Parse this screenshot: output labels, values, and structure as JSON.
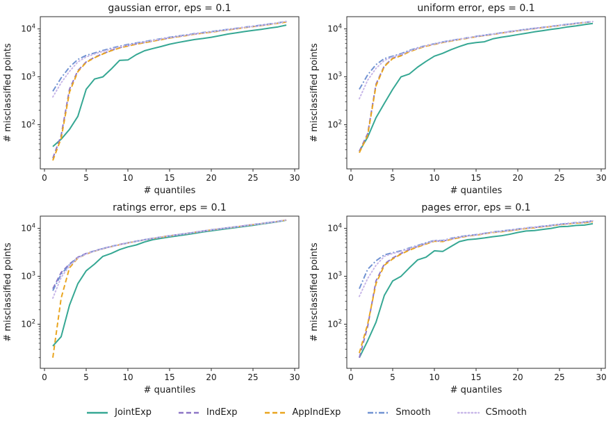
{
  "chart_data": {
    "type": "line",
    "layout": "2x2-grid",
    "x_label": "# quantiles",
    "y_label": "# misclassified points",
    "y_scale": "log",
    "x_ticks": [
      0,
      5,
      10,
      15,
      20,
      25,
      30
    ],
    "y_ticks": [
      100,
      1000,
      10000
    ],
    "x_lim": [
      -0.5,
      30.5
    ],
    "y_lim": [
      12,
      18000
    ],
    "legend_position": "bottom",
    "series_styles": [
      {
        "name": "JointExp",
        "color": "#35a793",
        "dash": "solid"
      },
      {
        "name": "IndExp",
        "color": "#8d75c6",
        "dash": "dashed"
      },
      {
        "name": "AppIndExp",
        "color": "#e9a51f",
        "dash": "dashed"
      },
      {
        "name": "Smooth",
        "color": "#7092d2",
        "dash": "dashdot"
      },
      {
        "name": "CSmooth",
        "color": "#c7b6e8",
        "dash": "dotted"
      }
    ],
    "x_values": [
      1,
      2,
      3,
      4,
      5,
      6,
      7,
      8,
      9,
      10,
      11,
      12,
      13,
      14,
      15,
      16,
      17,
      18,
      19,
      20,
      21,
      22,
      23,
      24,
      25,
      26,
      27,
      28,
      29
    ],
    "charts": [
      {
        "title": "gaussian error, eps = 0.1",
        "series": [
          {
            "name": "JointExp",
            "values": [
              35,
              50,
              80,
              150,
              550,
              900,
              1000,
              1450,
              2200,
              2250,
              2900,
              3500,
              3900,
              4300,
              4800,
              5200,
              5600,
              6000,
              6300,
              6700,
              7200,
              7800,
              8300,
              8800,
              9300,
              9800,
              10400,
              11000,
              12000
            ]
          },
          {
            "name": "IndExp",
            "values": [
              20,
              60,
              550,
              1350,
              2050,
              2550,
              3050,
              3550,
              4050,
              4450,
              4850,
              5200,
              5600,
              6000,
              6500,
              6900,
              7300,
              7800,
              8200,
              8600,
              9100,
              9600,
              10100,
              10700,
              11200,
              11800,
              12500,
              13200,
              14000
            ]
          },
          {
            "name": "AppIndExp",
            "values": [
              18,
              52,
              480,
              1280,
              2000,
              2500,
              3000,
              3500,
              4000,
              4400,
              4800,
              5150,
              5550,
              5950,
              6450,
              6850,
              7250,
              7750,
              8150,
              8550,
              9050,
              9550,
              10050,
              10650,
              11150,
              11750,
              12400,
              13100,
              13900
            ]
          },
          {
            "name": "Smooth",
            "values": [
              500,
              950,
              1600,
              2300,
              2800,
              3150,
              3550,
              3950,
              4350,
              4750,
              5100,
              5450,
              5850,
              6250,
              6700,
              7100,
              7500,
              8000,
              8400,
              8800,
              9300,
              9800,
              10300,
              10900,
              11400,
              12000,
              12700,
              13400,
              14400
            ]
          },
          {
            "name": "CSmooth",
            "values": [
              380,
              750,
              1300,
              2050,
              2600,
              3000,
              3400,
              3800,
              4200,
              4600,
              5000,
              5350,
              5750,
              6150,
              6600,
              7000,
              7400,
              7900,
              8300,
              8700,
              9200,
              9700,
              10200,
              10800,
              11300,
              11900,
              12600,
              13300,
              14300
            ]
          }
        ]
      },
      {
        "title": "uniform error, eps = 0.1",
        "series": [
          {
            "name": "JointExp",
            "values": [
              28,
              55,
              140,
              280,
              550,
              1000,
              1150,
              1600,
              2100,
              2700,
              3100,
              3700,
              4300,
              4900,
              5200,
              5400,
              6200,
              6700,
              7100,
              7600,
              8100,
              8700,
              9200,
              9800,
              10300,
              11000,
              11600,
              12300,
              13000
            ]
          },
          {
            "name": "IndExp",
            "values": [
              28,
              65,
              700,
              1700,
              2450,
              2800,
              3400,
              3900,
              4400,
              4800,
              5250,
              5650,
              6050,
              6450,
              6900,
              7300,
              7700,
              8200,
              8700,
              9200,
              9700,
              10200,
              10700,
              11200,
              11800,
              12400,
              13000,
              13600,
              14200
            ]
          },
          {
            "name": "AppIndExp",
            "values": [
              26,
              60,
              650,
              1650,
              2400,
              2750,
              3350,
              3850,
              4350,
              4750,
              5200,
              5600,
              6000,
              6400,
              6850,
              7250,
              7650,
              8150,
              8650,
              9150,
              9650,
              10150,
              10650,
              11150,
              11750,
              12350,
              12950,
              13550,
              14150
            ]
          },
          {
            "name": "Smooth",
            "values": [
              550,
              1100,
              1800,
              2400,
              2700,
              3050,
              3550,
              4050,
              4500,
              4900,
              5350,
              5750,
              6150,
              6550,
              7000,
              7400,
              7800,
              8300,
              8800,
              9300,
              9800,
              10300,
              10800,
              11300,
              11900,
              12500,
              13100,
              13700,
              14300
            ]
          },
          {
            "name": "CSmooth",
            "values": [
              350,
              850,
              1500,
              2200,
              2600,
              2950,
              3450,
              3950,
              4450,
              4850,
              5300,
              5700,
              6100,
              6500,
              6950,
              7350,
              7750,
              8250,
              8750,
              9250,
              9750,
              10250,
              10750,
              11250,
              11850,
              12450,
              13050,
              13650,
              14250
            ]
          }
        ]
      },
      {
        "title": "ratings error, eps = 0.1",
        "series": [
          {
            "name": "JointExp",
            "values": [
              35,
              55,
              250,
              700,
              1300,
              1800,
              2600,
              3000,
              3600,
              4100,
              4500,
              5200,
              5800,
              6200,
              6600,
              7000,
              7400,
              7900,
              8400,
              8900,
              9400,
              9900,
              10400,
              11000,
              11600,
              12300,
              13000,
              13800,
              14800
            ]
          },
          {
            "name": "IndExp",
            "values": [
              550,
              1200,
              1800,
              2500,
              3000,
              3400,
              3800,
              4200,
              4600,
              5000,
              5400,
              5800,
              6200,
              6600,
              7000,
              7400,
              7800,
              8300,
              8800,
              9300,
              9800,
              10300,
              10800,
              11400,
              12000,
              12600,
              13300,
              14000,
              15000
            ]
          },
          {
            "name": "AppIndExp",
            "values": [
              20,
              350,
              1500,
              2400,
              2900,
              3350,
              3750,
              4150,
              4550,
              4950,
              5350,
              5750,
              6150,
              6550,
              6950,
              7350,
              7750,
              8250,
              8750,
              9250,
              9750,
              10250,
              10750,
              11350,
              11950,
              12550,
              13250,
              13950,
              14950
            ]
          },
          {
            "name": "Smooth",
            "values": [
              500,
              1100,
              1750,
              2450,
              2950,
              3380,
              3780,
              4180,
              4580,
              4980,
              5380,
              5780,
              6180,
              6580,
              6980,
              7380,
              7780,
              8280,
              8780,
              9280,
              9780,
              10280,
              10780,
              11380,
              11980,
              12580,
              13280,
              13980,
              14980
            ]
          },
          {
            "name": "CSmooth",
            "values": [
              350,
              950,
              1650,
              2400,
              2920,
              3360,
              3760,
              4160,
              4560,
              4960,
              5360,
              5760,
              6160,
              6560,
              6960,
              7360,
              7760,
              8260,
              8760,
              9260,
              9760,
              10260,
              10760,
              11360,
              11960,
              12560,
              13260,
              13960,
              14960
            ]
          }
        ]
      },
      {
        "title": "pages error, eps = 0.1",
        "series": [
          {
            "name": "JointExp",
            "values": [
              20,
              45,
              110,
              400,
              800,
              1000,
              1500,
              2200,
              2500,
              3400,
              3300,
              4200,
              5300,
              5800,
              6000,
              6300,
              6700,
              7000,
              7500,
              8200,
              8800,
              9000,
              9500,
              10000,
              10800,
              11000,
              11500,
              11700,
              12500
            ]
          },
          {
            "name": "IndExp",
            "values": [
              20,
              90,
              800,
              1800,
              2400,
              3000,
              3600,
              4200,
              4800,
              5500,
              5400,
              6000,
              6500,
              7000,
              7300,
              7800,
              8300,
              8600,
              9000,
              9500,
              10000,
              10400,
              10900,
              11400,
              12000,
              12500,
              13000,
              13200,
              14000
            ]
          },
          {
            "name": "AppIndExp",
            "values": [
              25,
              100,
              700,
              1700,
              2300,
              2900,
              3500,
              4100,
              4700,
              5400,
              5300,
              5900,
              6400,
              6900,
              7200,
              7700,
              8200,
              8500,
              8900,
              9400,
              9900,
              10300,
              10800,
              11300,
              11900,
              12400,
              12900,
              13100,
              13800
            ]
          },
          {
            "name": "Smooth",
            "values": [
              550,
              1400,
              2100,
              2800,
              3100,
              3400,
              3900,
              4400,
              5000,
              5600,
              5600,
              6200,
              6700,
              7100,
              7400,
              7900,
              8400,
              8800,
              9200,
              9700,
              10200,
              10600,
              11100,
              11600,
              12200,
              12700,
              13200,
              13600,
              14500
            ]
          },
          {
            "name": "CSmooth",
            "values": [
              380,
              900,
              1700,
              2600,
              3000,
              3300,
              3800,
              4300,
              4900,
              5500,
              5500,
              6100,
              6600,
              7000,
              7300,
              7800,
              8300,
              8700,
              9100,
              9600,
              10100,
              10500,
              11000,
              11500,
              12100,
              12600,
              13100,
              13500,
              14400
            ]
          }
        ]
      }
    ]
  }
}
